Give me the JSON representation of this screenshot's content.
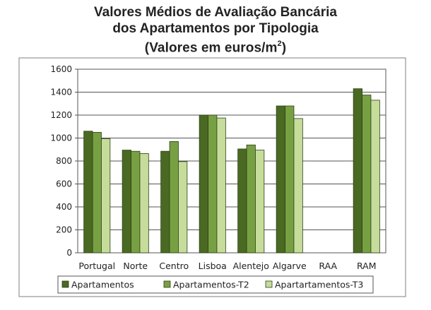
{
  "chart_data": {
    "type": "bar",
    "title_line1": "Valores Médios de Avaliação Bancária",
    "title_line2": "dos Apartamentos por Tipologia",
    "title_line3": "(Valores em euros/m",
    "title_unit_sup": "2",
    "title_line3_end": ")",
    "xlabel": "",
    "ylabel": "",
    "ylim": [
      0,
      1600
    ],
    "yticks": [
      "0",
      "200",
      "400",
      "600",
      "800",
      "1000",
      "1200",
      "1400",
      "1600"
    ],
    "grid": true,
    "legend_position": "bottom",
    "categories": [
      "Portugal",
      "Norte",
      "Centro",
      "Lisboa",
      "Alentejo",
      "Algarve",
      "RAA",
      "RAM"
    ],
    "series": [
      {
        "name": "Apartamentos",
        "color": "#4a6a23",
        "values": [
          1060,
          895,
          885,
          1200,
          905,
          1280,
          null,
          1430
        ]
      },
      {
        "name": "Apartamentos-T2",
        "color": "#77a043",
        "values": [
          1050,
          885,
          970,
          1200,
          940,
          1280,
          null,
          1375
        ]
      },
      {
        "name": "Apartartamentos-T3",
        "color": "#c6dc9b",
        "values": [
          995,
          865,
          795,
          1175,
          895,
          1170,
          null,
          1330
        ]
      }
    ]
  }
}
